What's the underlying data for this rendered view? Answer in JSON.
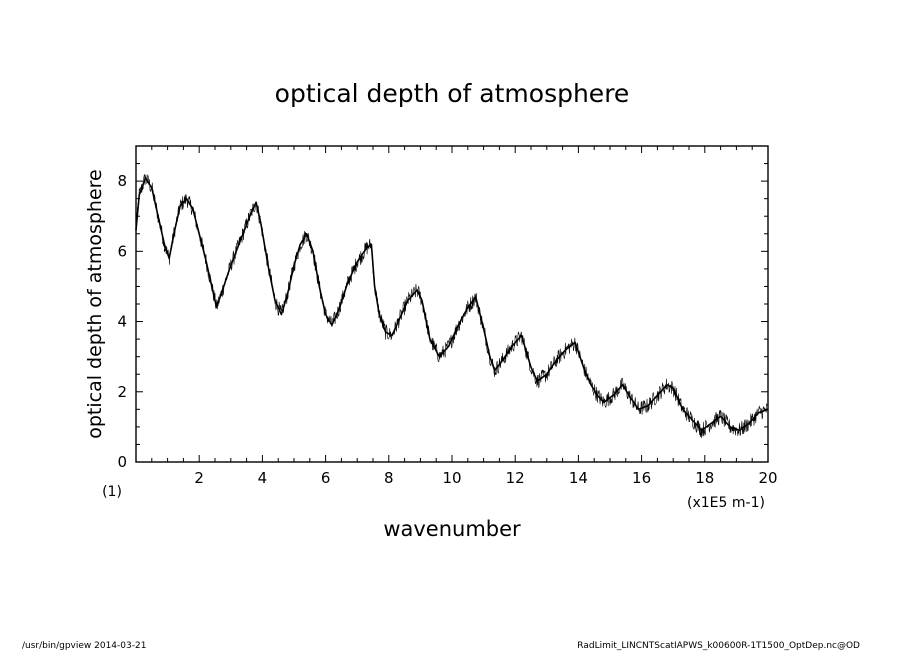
{
  "chart_data": {
    "type": "line",
    "title": "optical depth of atmosphere",
    "xlabel": "wavenumber",
    "ylabel": "optical depth of atmosphere",
    "x_unit": "(x1E5 m-1)",
    "y_unit": "(1)",
    "xlim": [
      0,
      20
    ],
    "ylim": [
      0,
      9
    ],
    "x_ticks": [
      "2",
      "4",
      "6",
      "8",
      "10",
      "12",
      "14",
      "16",
      "18",
      "20"
    ],
    "y_ticks": [
      "0",
      "2",
      "4",
      "6",
      "8"
    ],
    "grid": false,
    "legend": "none",
    "line_color": "#000000",
    "series": [
      {
        "x": [
          0.0,
          0.1,
          0.3,
          0.5,
          0.7,
          0.9,
          1.05,
          1.2,
          1.4,
          1.6,
          1.8,
          2.0,
          2.2,
          2.4,
          2.55,
          2.7,
          3.0,
          3.3,
          3.6,
          3.8,
          3.95,
          4.2,
          4.4,
          4.6,
          4.8,
          5.0,
          5.2,
          5.4,
          5.6,
          5.8,
          6.0,
          6.2,
          6.4,
          6.7,
          7.0,
          7.3,
          7.45,
          7.55,
          7.7,
          7.9,
          8.1,
          8.3,
          8.6,
          8.9,
          9.05,
          9.3,
          9.6,
          9.9,
          10.2,
          10.5,
          10.75,
          11.0,
          11.2,
          11.35,
          11.6,
          11.9,
          12.2,
          12.5,
          12.7,
          13.0,
          13.3,
          13.6,
          13.9,
          14.2,
          14.4,
          14.6,
          14.8,
          15.1,
          15.4,
          15.6,
          15.9,
          16.2,
          16.5,
          16.8,
          17.0,
          17.3,
          17.6,
          17.9,
          18.2,
          18.5,
          18.8,
          19.1,
          19.4,
          19.7,
          20.0
        ],
        "y": [
          6.6,
          7.6,
          8.1,
          7.8,
          7.0,
          6.2,
          5.8,
          6.5,
          7.3,
          7.5,
          7.2,
          6.5,
          5.8,
          5.0,
          4.4,
          4.8,
          5.6,
          6.3,
          7.0,
          7.4,
          6.8,
          5.5,
          4.6,
          4.2,
          4.8,
          5.6,
          6.2,
          6.5,
          6.0,
          5.0,
          4.2,
          3.9,
          4.3,
          5.1,
          5.7,
          6.1,
          6.2,
          5.0,
          4.2,
          3.7,
          3.6,
          4.0,
          4.6,
          4.9,
          4.6,
          3.5,
          3.0,
          3.3,
          3.9,
          4.4,
          4.7,
          3.8,
          3.0,
          2.6,
          2.9,
          3.3,
          3.6,
          2.7,
          2.3,
          2.5,
          2.9,
          3.2,
          3.4,
          2.6,
          2.2,
          1.9,
          1.7,
          1.9,
          2.2,
          1.9,
          1.5,
          1.6,
          1.9,
          2.2,
          2.1,
          1.5,
          1.2,
          0.9,
          1.1,
          1.3,
          1.0,
          0.9,
          1.1,
          1.4,
          1.5
        ]
      }
    ]
  },
  "footer": {
    "left": "/usr/bin/gpview   2014-03-21",
    "right": "RadLimit_LINCNTScatIAPWS_k00600R-1T1500_OptDep.nc@OD"
  }
}
